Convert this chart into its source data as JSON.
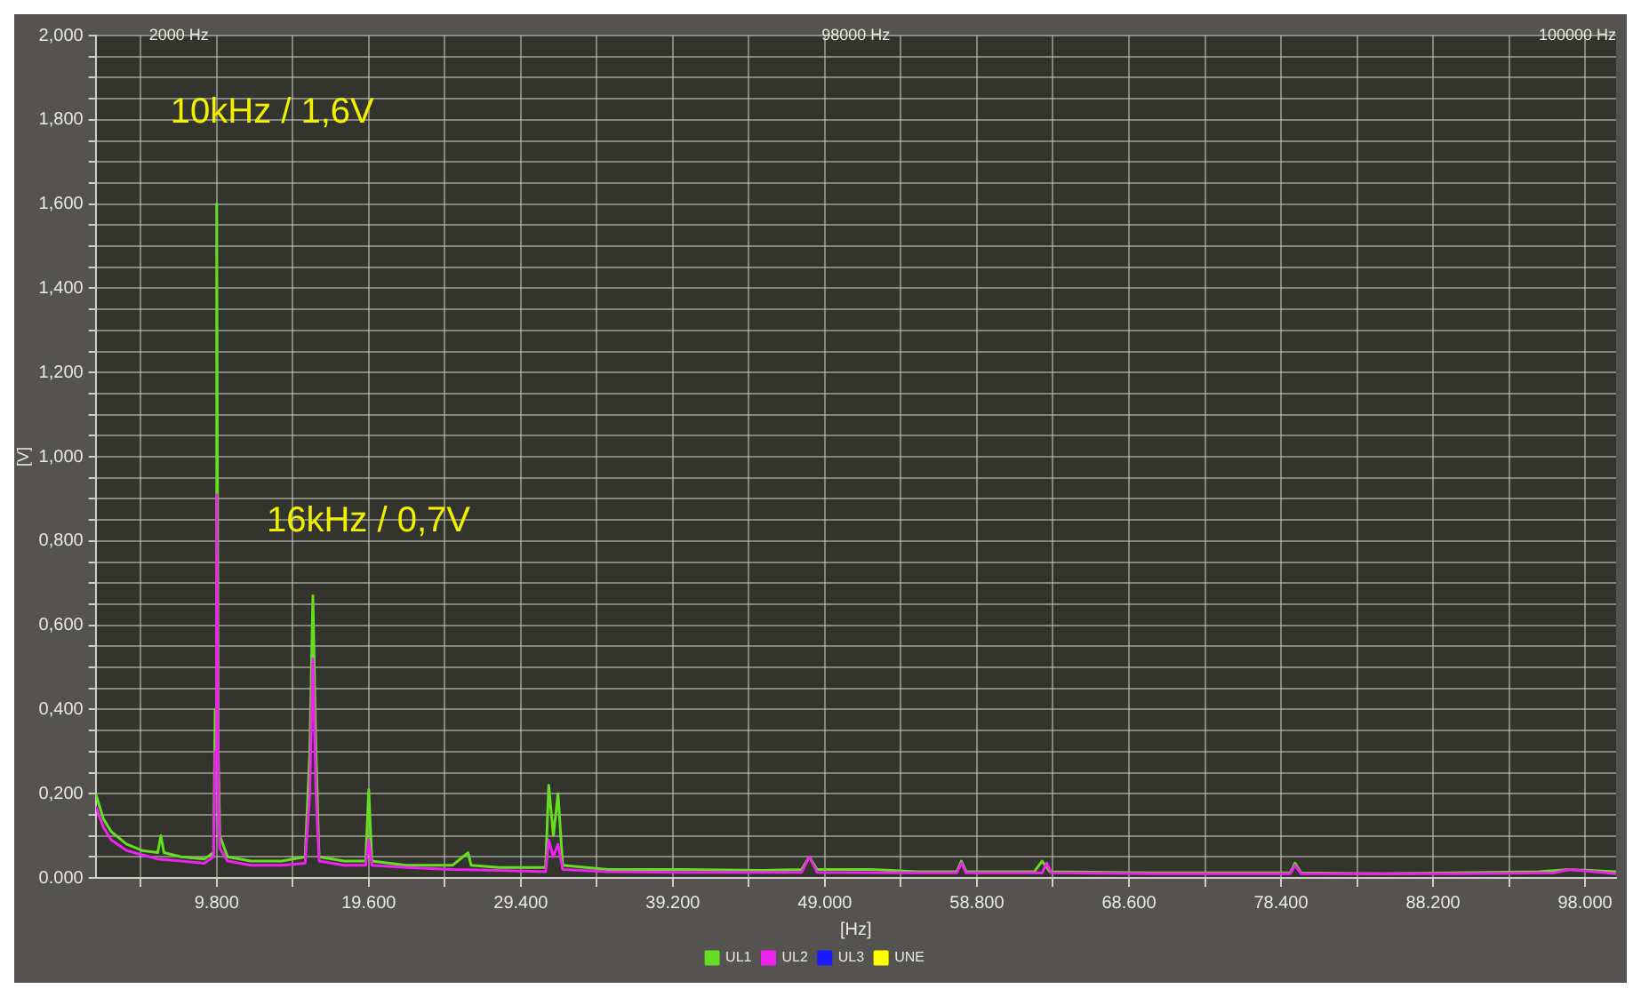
{
  "chart_data": {
    "type": "line",
    "xlabel": "[Hz]",
    "ylabel": "[V]",
    "legend": "bottom",
    "grid": true,
    "marker": "none",
    "line_style": "solid",
    "annotations": [
      "2000 Hz",
      "98000 Hz",
      "100000 Hz",
      {
        "text": "10kHz / 1,6V",
        "x": 9800,
        "y": 1.6
      },
      {
        "text": "16kHz / 0,7V",
        "x": 16000,
        "y": 0.67
      }
    ],
    "xlim": [
      2000,
      100000
    ],
    "xticks": [
      {
        "value": 4900,
        "label": null
      },
      {
        "value": 9800,
        "label": "9.800"
      },
      {
        "value": 14700,
        "label": null
      },
      {
        "value": 19600,
        "label": "19.600"
      },
      {
        "value": 24500,
        "label": null
      },
      {
        "value": 29400,
        "label": "29.400"
      },
      {
        "value": 34300,
        "label": null
      },
      {
        "value": 39200,
        "label": "39.200"
      },
      {
        "value": 44100,
        "label": null
      },
      {
        "value": 49000,
        "label": "49.000"
      },
      {
        "value": 53900,
        "label": null
      },
      {
        "value": 58800,
        "label": "58.800"
      },
      {
        "value": 63700,
        "label": null
      },
      {
        "value": 68600,
        "label": "68.600"
      },
      {
        "value": 73500,
        "label": null
      },
      {
        "value": 78400,
        "label": "78.400"
      },
      {
        "value": 83300,
        "label": null
      },
      {
        "value": 88200,
        "label": "88.200"
      },
      {
        "value": 93100,
        "label": null
      },
      {
        "value": 98000,
        "label": "98.000"
      }
    ],
    "ylim": [
      0,
      2
    ],
    "yticks": [
      {
        "value": 0,
        "label": "0.000"
      },
      {
        "value": 0.05,
        "label": null
      },
      {
        "value": 0.1,
        "label": null
      },
      {
        "value": 0.15,
        "label": null
      },
      {
        "value": 0.2,
        "label": "0,200"
      },
      {
        "value": 0.25,
        "label": null
      },
      {
        "value": 0.3,
        "label": null
      },
      {
        "value": 0.35,
        "label": null
      },
      {
        "value": 0.4,
        "label": "0,400"
      },
      {
        "value": 0.45,
        "label": null
      },
      {
        "value": 0.5,
        "label": null
      },
      {
        "value": 0.55,
        "label": null
      },
      {
        "value": 0.6,
        "label": "0,600"
      },
      {
        "value": 0.65,
        "label": null
      },
      {
        "value": 0.7,
        "label": null
      },
      {
        "value": 0.75,
        "label": null
      },
      {
        "value": 0.8,
        "label": "0,800"
      },
      {
        "value": 0.85,
        "label": null
      },
      {
        "value": 0.9,
        "label": null
      },
      {
        "value": 0.95,
        "label": null
      },
      {
        "value": 1,
        "label": "1,000"
      },
      {
        "value": 1.05,
        "label": null
      },
      {
        "value": 1.1,
        "label": null
      },
      {
        "value": 1.15,
        "label": null
      },
      {
        "value": 1.2,
        "label": "1,200"
      },
      {
        "value": 1.25,
        "label": null
      },
      {
        "value": 1.3,
        "label": null
      },
      {
        "value": 1.35,
        "label": null
      },
      {
        "value": 1.4,
        "label": "1,400"
      },
      {
        "value": 1.45,
        "label": null
      },
      {
        "value": 1.5,
        "label": null
      },
      {
        "value": 1.55,
        "label": null
      },
      {
        "value": 1.6,
        "label": "1,600"
      },
      {
        "value": 1.65,
        "label": null
      },
      {
        "value": 1.7,
        "label": null
      },
      {
        "value": 1.75,
        "label": null
      },
      {
        "value": 1.8,
        "label": "1,800"
      },
      {
        "value": 1.85,
        "label": null
      },
      {
        "value": 1.9,
        "label": null
      },
      {
        "value": 1.95,
        "label": null
      },
      {
        "value": 2,
        "label": "2,000"
      }
    ],
    "series": [
      {
        "name": "UL1",
        "color": "#66dd22",
        "x": [
          2000,
          2500,
          3000,
          4000,
          5000,
          6000,
          6200,
          6400,
          7500,
          9000,
          9600,
          9700,
          9800,
          9900,
          10000,
          10500,
          12000,
          14000,
          15500,
          15800,
          16000,
          16200,
          16400,
          18000,
          19400,
          19600,
          19800,
          22000,
          25000,
          26000,
          26200,
          28000,
          31000,
          31200,
          31500,
          31800,
          32100,
          35000,
          40000,
          45000,
          47500,
          48000,
          48500,
          52000,
          55000,
          57500,
          57800,
          58100,
          60000,
          62500,
          63000,
          63500,
          70000,
          79000,
          79300,
          79700,
          85000,
          95000,
          97000,
          100000
        ],
        "values": [
          0.2,
          0.14,
          0.11,
          0.08,
          0.065,
          0.06,
          0.1,
          0.06,
          0.05,
          0.045,
          0.06,
          0.4,
          1.6,
          0.3,
          0.1,
          0.05,
          0.04,
          0.04,
          0.05,
          0.3,
          0.67,
          0.3,
          0.05,
          0.04,
          0.04,
          0.21,
          0.04,
          0.03,
          0.03,
          0.06,
          0.03,
          0.025,
          0.025,
          0.22,
          0.1,
          0.2,
          0.03,
          0.02,
          0.02,
          0.018,
          0.02,
          0.05,
          0.02,
          0.02,
          0.015,
          0.015,
          0.04,
          0.015,
          0.015,
          0.015,
          0.04,
          0.015,
          0.012,
          0.012,
          0.035,
          0.012,
          0.01,
          0.015,
          0.02,
          0.015
        ]
      },
      {
        "name": "UL2",
        "color": "#ee22ee",
        "x": [
          2000,
          2500,
          3000,
          4000,
          5000,
          6000,
          7500,
          9000,
          9600,
          9700,
          9800,
          9900,
          10000,
          10500,
          12000,
          14000,
          15500,
          15800,
          16000,
          16200,
          16400,
          18000,
          19400,
          19600,
          19800,
          22000,
          25000,
          28000,
          31000,
          31200,
          31500,
          31800,
          32100,
          35000,
          40000,
          47500,
          48000,
          48500,
          55000,
          57500,
          57800,
          58100,
          63000,
          63300,
          63600,
          70000,
          79000,
          79300,
          79700,
          90000,
          96000,
          97000,
          100000
        ],
        "values": [
          0.17,
          0.12,
          0.09,
          0.065,
          0.055,
          0.045,
          0.04,
          0.035,
          0.05,
          0.3,
          0.91,
          0.2,
          0.07,
          0.04,
          0.03,
          0.03,
          0.035,
          0.2,
          0.52,
          0.2,
          0.04,
          0.03,
          0.03,
          0.09,
          0.03,
          0.025,
          0.02,
          0.018,
          0.015,
          0.09,
          0.05,
          0.08,
          0.02,
          0.015,
          0.013,
          0.013,
          0.05,
          0.013,
          0.012,
          0.012,
          0.035,
          0.012,
          0.012,
          0.035,
          0.012,
          0.01,
          0.01,
          0.03,
          0.01,
          0.01,
          0.012,
          0.02,
          0.01
        ]
      },
      {
        "name": "UL3",
        "color": "#1a1aff"
      },
      {
        "name": "UNE",
        "color": "#ffff00"
      }
    ]
  }
}
